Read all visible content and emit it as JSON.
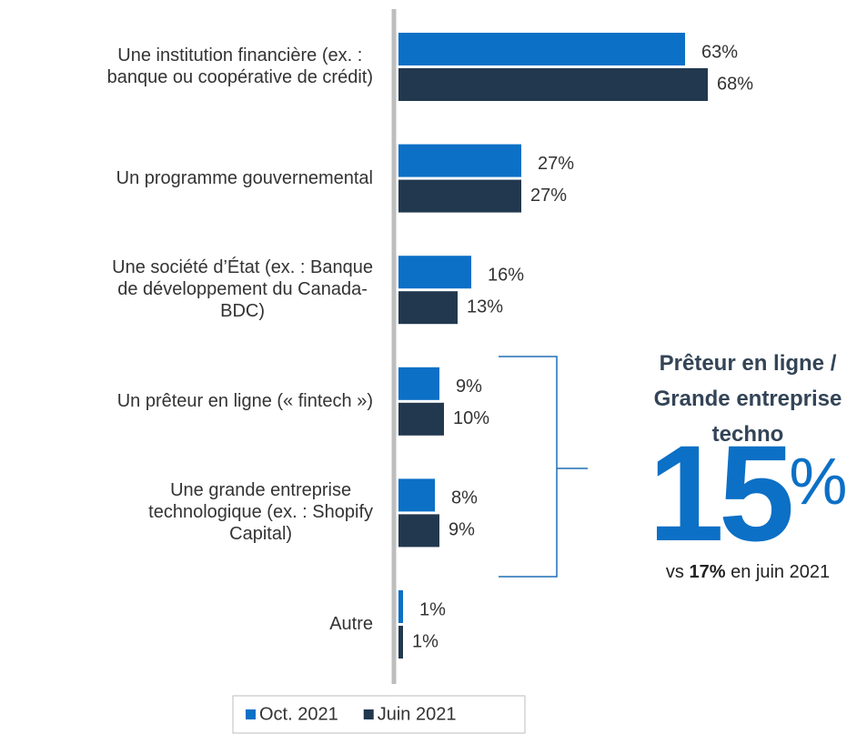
{
  "chart_data": {
    "type": "bar",
    "orientation": "horizontal",
    "categories": [
      "Une institution financière (ex. :\nbanque ou coopérative de crédit)",
      "Un programme gouvernemental",
      "Une société d’État (ex. : Banque\nde développement du Canada-\nBDC)",
      "Un prêteur en ligne (« fintech »)",
      "Une grande entreprise\ntechnologique (ex. : Shopify\nCapital)",
      "Autre"
    ],
    "series": [
      {
        "name": "Oct. 2021",
        "color": "#0b70c6",
        "values": [
          63,
          27,
          16,
          9,
          8,
          1
        ],
        "value_labels": [
          "63%",
          "27%",
          "16%",
          "9%",
          "8%",
          "1%"
        ]
      },
      {
        "name": "Juin 2021",
        "color": "#22384f",
        "values": [
          68,
          27,
          13,
          10,
          9,
          1
        ],
        "value_labels": [
          "68%",
          "27%",
          "13%",
          "10%",
          "9%",
          "1%"
        ]
      }
    ],
    "xlim": [
      0,
      100
    ],
    "legend": "bottom",
    "annotation": {
      "title": "Prêteur en ligne /\nGrande entreprise\ntechno",
      "value": "15",
      "value_suffix": "%",
      "note_prefix": "vs",
      "note_value": "17%",
      "note_suffix": "en juin 2021"
    }
  }
}
